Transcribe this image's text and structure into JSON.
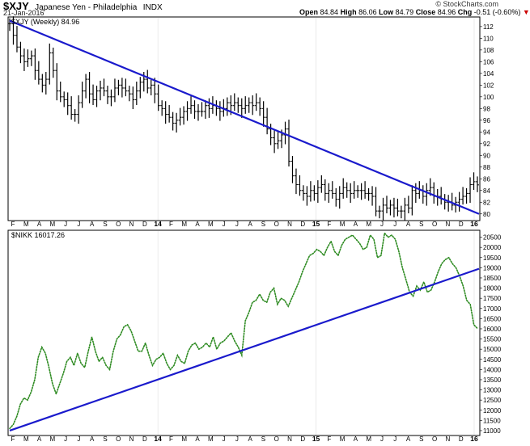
{
  "header": {
    "symbol": "$XJY",
    "name": "Japanese Yen - Philadelphia",
    "exchange": "INDX",
    "date": "21-Jan-2016",
    "quote": {
      "open_label": "Open",
      "open": "84.84",
      "high_label": "High",
      "high": "86.06",
      "low_label": "Low",
      "low": "84.79",
      "close_label": "Close",
      "close": "84.96",
      "chg_label": "Chg",
      "chg": "-0.51 (-0.60%)",
      "chg_color": "#cc0000"
    },
    "credit": "© StockCharts.com"
  },
  "chart_data": [
    {
      "type": "ohlc-bar",
      "legend": "$XJY (Weekly) 84.96",
      "bar_color": "#000000",
      "trendline_color": "#1a1acc",
      "ylim": [
        79,
        113.5
      ],
      "yticks": [
        80,
        82,
        84,
        86,
        88,
        90,
        92,
        94,
        96,
        98,
        100,
        102,
        104,
        106,
        108,
        110,
        112
      ],
      "x_month_labels": [
        "F",
        "M",
        "A",
        "M",
        "J",
        "J",
        "A",
        "S",
        "O",
        "N",
        "D",
        "14",
        "F",
        "M",
        "A",
        "M",
        "J",
        "J",
        "A",
        "S",
        "O",
        "N",
        "D",
        "15",
        "F",
        "M",
        "A",
        "M",
        "J",
        "J",
        "A",
        "S",
        "O",
        "N",
        "D",
        "16"
      ],
      "weekly_close": [
        112.5,
        110.5,
        108.5,
        107.0,
        106.0,
        106.5,
        107.0,
        104.5,
        103.0,
        102.0,
        103.0,
        107.5,
        104.5,
        101.0,
        100.0,
        99.5,
        98.5,
        97.0,
        97.0,
        99.0,
        101.0,
        103.0,
        100.5,
        99.5,
        101.0,
        101.5,
        101.0,
        100.0,
        100.0,
        101.5,
        102.0,
        101.5,
        101.0,
        100.5,
        99.5,
        101.0,
        102.5,
        103.0,
        101.5,
        102.0,
        100.5,
        98.5,
        98.0,
        97.0,
        96.5,
        95.5,
        96.0,
        96.5,
        97.5,
        98.0,
        98.5,
        97.5,
        97.5,
        97.5,
        98.5,
        98.0,
        98.5,
        98.0,
        97.5,
        98.0,
        99.0,
        98.5,
        99.0,
        98.5,
        98.0,
        98.5,
        99.0,
        98.5,
        99.0,
        98.0,
        96.5,
        94.5,
        93.0,
        92.0,
        92.5,
        93.5,
        94.5,
        89.0,
        86.5,
        85.0,
        84.0,
        83.5,
        83.0,
        84.0,
        83.5,
        84.5,
        85.0,
        83.5,
        84.0,
        83.5,
        82.5,
        83.5,
        84.5,
        84.0,
        83.5,
        84.0,
        84.0,
        84.0,
        83.5,
        83.5,
        83.0,
        80.5,
        80.5,
        81.5,
        81.0,
        81.5,
        81.0,
        80.5,
        80.5,
        81.5,
        81.0,
        84.0,
        83.5,
        84.0,
        83.0,
        84.0,
        84.5,
        83.0,
        83.0,
        82.5,
        82.0,
        82.0,
        81.5,
        82.0,
        82.5,
        83.0,
        83.5,
        85.0,
        85.5,
        84.96
      ],
      "trendline": {
        "start": 113.0,
        "end": 80.0
      }
    },
    {
      "type": "line",
      "legend": "$NIKK 16017.26",
      "line_color": "#2e8b22",
      "line_style": "dotted",
      "trendline_color": "#1a1acc",
      "ylim": [
        10800,
        20800
      ],
      "yticks": [
        11000,
        11500,
        12000,
        12500,
        13000,
        13500,
        14000,
        14500,
        15000,
        15500,
        16000,
        16500,
        17000,
        17500,
        18000,
        18500,
        19000,
        19500,
        20000,
        20500
      ],
      "x_month_labels": [
        "F",
        "M",
        "A",
        "M",
        "J",
        "J",
        "A",
        "S",
        "O",
        "N",
        "D",
        "14",
        "F",
        "M",
        "A",
        "M",
        "J",
        "J",
        "A",
        "S",
        "O",
        "N",
        "D",
        "15",
        "F",
        "M",
        "A",
        "M",
        "J",
        "J",
        "A",
        "S",
        "O",
        "N",
        "D",
        "16"
      ],
      "weekly_close": [
        11100,
        11300,
        11700,
        12300,
        12600,
        12500,
        12900,
        13500,
        14600,
        15100,
        14800,
        14100,
        13300,
        12800,
        13300,
        13800,
        14400,
        14600,
        14200,
        14800,
        14300,
        14100,
        14900,
        15600,
        14900,
        14400,
        14600,
        14200,
        14000,
        14900,
        15500,
        15700,
        16100,
        16200,
        15900,
        15400,
        14900,
        14900,
        15300,
        14700,
        14200,
        14500,
        14600,
        14800,
        14300,
        14000,
        14200,
        14700,
        14400,
        14300,
        14900,
        15200,
        15300,
        15000,
        15100,
        15300,
        15100,
        15600,
        15000,
        15300,
        15400,
        15600,
        15800,
        15400,
        15100,
        14700,
        16400,
        16800,
        17300,
        17400,
        17700,
        17400,
        17300,
        17800,
        18000,
        17200,
        17500,
        17400,
        17100,
        17500,
        17900,
        18300,
        18800,
        19200,
        19600,
        19700,
        19900,
        19800,
        19600,
        20000,
        20300,
        19800,
        19600,
        20100,
        20400,
        20500,
        20600,
        20400,
        20200,
        19900,
        20000,
        20600,
        20400,
        19500,
        19600,
        20700,
        20500,
        20600,
        20400,
        19800,
        19000,
        18400,
        17800,
        17600,
        18100,
        17900,
        18300,
        17800,
        17900,
        18300,
        18800,
        19200,
        19400,
        19500,
        19200,
        19000,
        18600,
        18100,
        17400,
        17200,
        16200,
        16017
      ],
      "trendline": {
        "start": 11000,
        "end": 18950
      }
    }
  ]
}
